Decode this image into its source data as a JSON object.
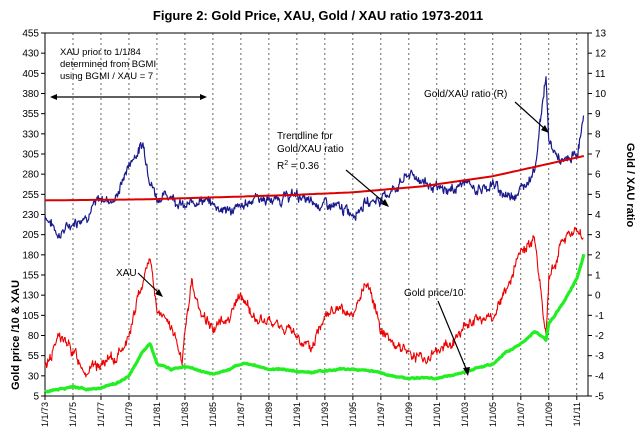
{
  "chart_data": {
    "type": "line",
    "title": "Figure 2: Gold Price,  XAU,  Gold / XAU ratio  1973-2011",
    "ylabel_left": "Gold price /10   &   XAU",
    "ylabel_right": "Gold / XAU ratio",
    "ylim_left": [
      5,
      455
    ],
    "ylim_right": [
      -5,
      13
    ],
    "yticks_left": [
      5,
      30,
      55,
      80,
      105,
      130,
      155,
      180,
      205,
      230,
      255,
      280,
      305,
      330,
      355,
      380,
      405,
      430,
      455
    ],
    "yticks_right": [
      -5,
      -4,
      -3,
      -2,
      -1,
      0,
      1,
      2,
      3,
      4,
      5,
      6,
      7,
      8,
      9,
      10,
      11,
      12,
      13
    ],
    "xlim": [
      1973,
      2011.8
    ],
    "xticks": [
      "1/1/73",
      "1/1/75",
      "1/1/77",
      "1/1/79",
      "1/1/81",
      "1/1/83",
      "1/1/85",
      "1/1/87",
      "1/1/89",
      "1/1/91",
      "1/1/93",
      "1/1/95",
      "1/1/97",
      "1/1/99",
      "1/1/01",
      "1/1/03",
      "1/1/05",
      "1/1/07",
      "1/1/09",
      "1/1/11"
    ],
    "grid": "vertical dashed",
    "series": [
      {
        "name": "Gold/XAU ratio (R)",
        "axis": "right",
        "color": "#1a1a8c",
        "x": [
          1973,
          1974,
          1975,
          1976,
          1977,
          1978,
          1979,
          1980,
          1980.5,
          1981,
          1982,
          1983,
          1984,
          1985,
          1986,
          1987,
          1988,
          1989,
          1990,
          1991,
          1992,
          1993,
          1994,
          1995,
          1996,
          1997,
          1998,
          1999,
          2000,
          2001,
          2002,
          2003,
          2004,
          2005,
          2006,
          2007,
          2008,
          2008.8,
          2009,
          2010,
          2011,
          2011.5
        ],
        "y": [
          4.0,
          3.0,
          3.6,
          4.0,
          4.8,
          4.7,
          6.5,
          7.5,
          5.8,
          4.8,
          5.0,
          4.3,
          4.8,
          4.5,
          4.2,
          4.3,
          4.9,
          4.7,
          4.8,
          5.0,
          4.5,
          4.5,
          4.3,
          4.1,
          4.6,
          4.8,
          5.3,
          6.0,
          5.7,
          5.2,
          5.2,
          5.6,
          5.2,
          5.5,
          4.9,
          5.2,
          6.3,
          11.0,
          7.5,
          6.5,
          7.0,
          8.7
        ]
      },
      {
        "name": "Trendline for Gold/XAU ratio",
        "axis": "right",
        "color": "#dd0000",
        "x": [
          1973,
          1980,
          1985,
          1990,
          1995,
          2000,
          2005,
          2011.5
        ],
        "y": [
          4.7,
          4.75,
          4.85,
          4.95,
          5.1,
          5.4,
          5.9,
          6.9
        ]
      },
      {
        "name": "XAU",
        "axis": "left",
        "color": "#ee0000",
        "x": [
          1973,
          1974,
          1975,
          1976,
          1977,
          1978,
          1979,
          1980,
          1980.5,
          1981,
          1982,
          1982.8,
          1983.5,
          1984,
          1985,
          1986,
          1987,
          1988,
          1989,
          1990,
          1991,
          1992,
          1993,
          1994,
          1995,
          1996,
          1997,
          1998,
          1999,
          2000,
          2001,
          2002,
          2003,
          2004,
          2005,
          2006,
          2007,
          2008,
          2008.8,
          2009,
          2010,
          2011,
          2011.5
        ],
        "y": [
          40,
          80,
          60,
          35,
          45,
          50,
          80,
          150,
          180,
          110,
          90,
          50,
          150,
          110,
          90,
          100,
          130,
          100,
          95,
          90,
          80,
          60,
          110,
          110,
          100,
          150,
          90,
          70,
          60,
          50,
          60,
          70,
          90,
          100,
          100,
          140,
          180,
          200,
          80,
          150,
          200,
          210,
          200
        ]
      },
      {
        "name": "Gold price/10",
        "axis": "left",
        "color": "#22ee22",
        "x": [
          1973,
          1974,
          1975,
          1976,
          1977,
          1978,
          1979,
          1980,
          1980.5,
          1981,
          1982,
          1983,
          1984,
          1985,
          1986,
          1987,
          1988,
          1989,
          1990,
          1991,
          1992,
          1993,
          1994,
          1995,
          1996,
          1997,
          1998,
          1999,
          2000,
          2001,
          2002,
          2003,
          2004,
          2005,
          2006,
          2007,
          2008,
          2008.8,
          2009,
          2010,
          2011,
          2011.5
        ],
        "y": [
          10,
          14,
          16,
          13,
          15,
          20,
          30,
          60,
          70,
          45,
          38,
          42,
          36,
          32,
          37,
          45,
          43,
          38,
          38,
          36,
          34,
          36,
          38,
          38,
          37,
          34,
          29,
          27,
          28,
          27,
          30,
          35,
          40,
          44,
          60,
          70,
          85,
          75,
          95,
          120,
          150,
          180
        ]
      }
    ],
    "annotations": [
      {
        "text": [
          "XAU prior to 1/1/84",
          "determined from BGMI",
          "using BGMI / XAU = 7"
        ]
      },
      {
        "text": [
          "Gold/XAU ratio (R)"
        ]
      },
      {
        "text": [
          "Trendline for",
          "Gold/XAU ratio"
        ]
      },
      {
        "text": [
          "R",
          "2",
          " = 0.36"
        ]
      },
      {
        "text": [
          "XAU"
        ]
      },
      {
        "text": [
          "Gold price/10"
        ]
      }
    ]
  }
}
